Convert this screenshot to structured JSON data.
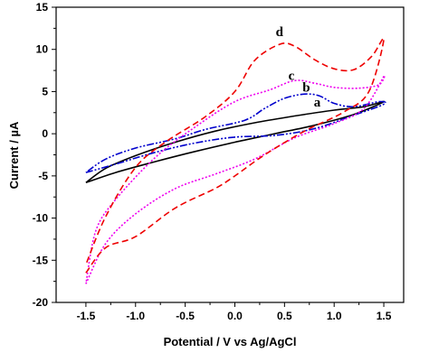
{
  "chart_data": {
    "type": "line",
    "xlabel": "Potential / V vs Ag/AgCl",
    "ylabel": "Current / µA",
    "xlim": [
      -1.8,
      1.7
    ],
    "ylim": [
      -20,
      15
    ],
    "x_ticks": [
      -1.5,
      -1.0,
      -0.5,
      0.0,
      0.5,
      1.0,
      1.5
    ],
    "x_tick_labels": [
      "-1.5",
      "-1.0",
      "-0.5",
      "0.0",
      "0.5",
      "1.0",
      "1.5"
    ],
    "y_ticks": [
      -20,
      -15,
      -10,
      -5,
      0,
      5,
      10,
      15
    ],
    "y_tick_labels": [
      "-20",
      "-15",
      "-10",
      "-5",
      "0",
      "5",
      "10",
      "15"
    ],
    "grid": false,
    "legend": "none",
    "series": [
      {
        "label": "a",
        "color": "#000000",
        "dash": "solid",
        "label_pos": [
          0.83,
          3.2
        ],
        "points": [
          [
            -1.5,
            -5.8
          ],
          [
            -1.2,
            -4.6
          ],
          [
            -0.8,
            -3.3
          ],
          [
            -0.4,
            -2.1
          ],
          [
            0,
            -1.0
          ],
          [
            0.4,
            0.0
          ],
          [
            0.8,
            1.0
          ],
          [
            1.2,
            2.3
          ],
          [
            1.5,
            3.8
          ],
          [
            1.3,
            3.2
          ],
          [
            1.0,
            2.8
          ],
          [
            0.6,
            2.1
          ],
          [
            0.2,
            1.3
          ],
          [
            -0.2,
            0.3
          ],
          [
            -0.6,
            -1.0
          ],
          [
            -1.0,
            -2.6
          ],
          [
            -1.3,
            -4.1
          ],
          [
            -1.5,
            -5.8
          ]
        ]
      },
      {
        "label": "b",
        "color": "#0000cc",
        "dash": "8 2 2 2 2 2",
        "label_pos": [
          0.72,
          5.0
        ],
        "points": [
          [
            -1.5,
            -4.6
          ],
          [
            -1.2,
            -3.6
          ],
          [
            -0.8,
            -2.2
          ],
          [
            -0.4,
            -1.1
          ],
          [
            0,
            -0.4
          ],
          [
            0.4,
            -0.2
          ],
          [
            0.8,
            0.6
          ],
          [
            1.2,
            2.2
          ],
          [
            1.5,
            3.5
          ],
          [
            1.45,
            3.8
          ],
          [
            1.2,
            3.2
          ],
          [
            1.0,
            3.6
          ],
          [
            0.85,
            4.5
          ],
          [
            0.7,
            4.7
          ],
          [
            0.5,
            4.2
          ],
          [
            0.3,
            3.0
          ],
          [
            0.1,
            1.6
          ],
          [
            -0.3,
            0.5
          ],
          [
            -0.6,
            -0.6
          ],
          [
            -1.0,
            -1.7
          ],
          [
            -1.3,
            -3.0
          ],
          [
            -1.5,
            -4.6
          ]
        ]
      },
      {
        "label": "c",
        "color": "#ee00ee",
        "dash": "2 2",
        "label_pos": [
          0.57,
          6.4
        ],
        "points": [
          [
            -1.5,
            -17.8
          ],
          [
            -1.3,
            -13.0
          ],
          [
            -1.0,
            -9.5
          ],
          [
            -0.6,
            -6.5
          ],
          [
            -0.2,
            -4.8
          ],
          [
            0.2,
            -3.0
          ],
          [
            0.6,
            -0.5
          ],
          [
            1.0,
            1.2
          ],
          [
            1.3,
            3.0
          ],
          [
            1.5,
            6.8
          ],
          [
            1.45,
            5.8
          ],
          [
            1.25,
            5.4
          ],
          [
            1.0,
            5.5
          ],
          [
            0.8,
            6.0
          ],
          [
            0.6,
            6.3
          ],
          [
            0.35,
            5.2
          ],
          [
            0.0,
            3.8
          ],
          [
            -0.4,
            0.8
          ],
          [
            -0.8,
            -2.8
          ],
          [
            -1.2,
            -7.8
          ],
          [
            -1.4,
            -11.5
          ],
          [
            -1.5,
            -17.8
          ]
        ]
      },
      {
        "label": "d",
        "color": "#ee0000",
        "dash": "7 4",
        "label_pos": [
          0.45,
          11.6
        ],
        "points": [
          [
            -1.5,
            -16.5
          ],
          [
            -1.3,
            -13.5
          ],
          [
            -1.0,
            -12.2
          ],
          [
            -0.6,
            -8.8
          ],
          [
            -0.2,
            -6.5
          ],
          [
            0.0,
            -5.0
          ],
          [
            0.3,
            -2.5
          ],
          [
            0.7,
            0.3
          ],
          [
            1.1,
            2.6
          ],
          [
            1.35,
            5.0
          ],
          [
            1.5,
            11.2
          ],
          [
            1.38,
            9.2
          ],
          [
            1.2,
            7.6
          ],
          [
            1.0,
            7.7
          ],
          [
            0.8,
            8.8
          ],
          [
            0.6,
            10.4
          ],
          [
            0.45,
            10.6
          ],
          [
            0.2,
            8.7
          ],
          [
            0.0,
            5.0
          ],
          [
            -0.3,
            2.0
          ],
          [
            -0.7,
            -1.0
          ],
          [
            -1.0,
            -4.0
          ],
          [
            -1.3,
            -9.8
          ],
          [
            -1.5,
            -15.5
          ]
        ]
      }
    ]
  }
}
